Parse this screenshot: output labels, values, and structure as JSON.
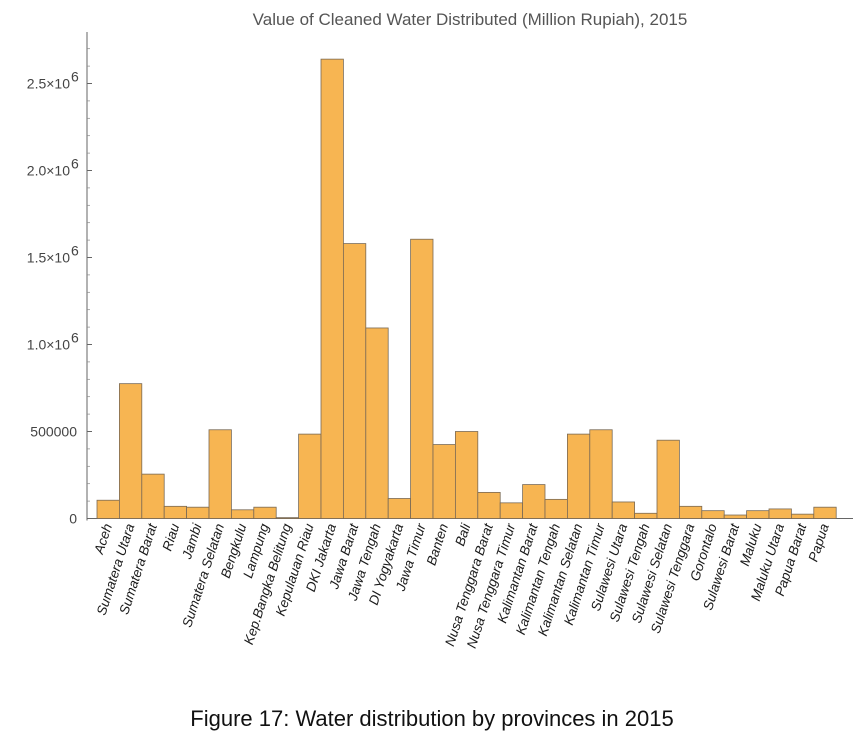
{
  "caption": "Figure 17: Water distribution by provinces in 2015",
  "chart_data": {
    "type": "bar",
    "title": "Value of Cleaned Water Distributed (Million Rupiah), 2015",
    "xlabel": "",
    "ylabel": "",
    "ylim": [
      0,
      2750000
    ],
    "grid": false,
    "bar_color": "#F7B552",
    "bar_edge_color": "#7a6a55",
    "ytick_values": [
      500000,
      1000000,
      1500000,
      2000000,
      2500000
    ],
    "ytick_labels": [
      {
        "value": 0,
        "mantissa": "0",
        "exp": ""
      },
      {
        "value": 500000,
        "mantissa": "500000",
        "exp": ""
      },
      {
        "value": 1000000,
        "mantissa": "1.0×10",
        "exp": "6"
      },
      {
        "value": 1500000,
        "mantissa": "1.5×10",
        "exp": "6"
      },
      {
        "value": 2000000,
        "mantissa": "2.0×10",
        "exp": "6"
      },
      {
        "value": 2500000,
        "mantissa": "2.5×10",
        "exp": "6"
      }
    ],
    "categories": [
      "Aceh",
      "Sumatera Utara",
      "Sumatera Barat",
      "Riau",
      "Jambi",
      "Sumatera Selatan",
      "Bengkulu",
      "Lampung",
      "Kep.Bangka Belitung",
      "Kepulauan Riau",
      "DKI Jakarta",
      "Jawa Barat",
      "Jawa Tengah",
      "DI Yogyakarta",
      "Jawa Timur",
      "Banten",
      "Bali",
      "Nusa Tenggara Barat",
      "Nusa Tenggara Timur",
      "Kalimantan Barat",
      "Kalimantan Tengah",
      "Kalimantan Selatan",
      "Kalimantan Timur",
      "Sulawesi Utara",
      "Sulawesi Tengah",
      "Sulawesi Selatan",
      "Sulawesi Tenggara",
      "Gorontalo",
      "Sulawesi Barat",
      "Maluku",
      "Maluku Utara",
      "Papua Barat",
      "Papua"
    ],
    "values": [
      105000,
      775000,
      255000,
      70000,
      65000,
      510000,
      50000,
      65000,
      5000,
      485000,
      2640000,
      1580000,
      1095000,
      115000,
      1605000,
      425000,
      500000,
      150000,
      90000,
      195000,
      110000,
      485000,
      510000,
      95000,
      30000,
      450000,
      70000,
      45000,
      20000,
      45000,
      55000,
      25000,
      65000
    ]
  }
}
